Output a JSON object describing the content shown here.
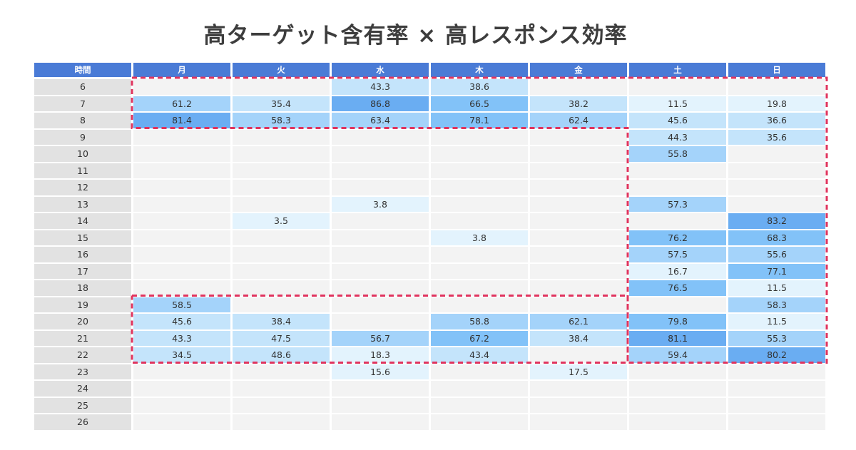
{
  "title": "高ターゲット含有率 × 高レスポンス効率",
  "chart_data": {
    "type": "heatmap",
    "title": "高ターゲット含有率 × 高レスポンス効率",
    "corner_label": "時間",
    "columns": [
      "月",
      "火",
      "水",
      "木",
      "金",
      "土",
      "日"
    ],
    "rows": [
      "6",
      "7",
      "8",
      "9",
      "10",
      "11",
      "12",
      "13",
      "14",
      "15",
      "16",
      "17",
      "18",
      "19",
      "20",
      "21",
      "22",
      "23",
      "24",
      "25",
      "26"
    ],
    "values": [
      [
        null,
        null,
        43.3,
        38.6,
        null,
        null,
        null
      ],
      [
        61.2,
        35.4,
        86.8,
        66.5,
        38.2,
        11.5,
        19.8
      ],
      [
        81.4,
        58.3,
        63.4,
        78.1,
        62.4,
        45.6,
        36.6
      ],
      [
        null,
        null,
        null,
        null,
        null,
        44.3,
        35.6
      ],
      [
        null,
        null,
        null,
        null,
        null,
        55.8,
        null
      ],
      [
        null,
        null,
        null,
        null,
        null,
        null,
        null
      ],
      [
        null,
        null,
        null,
        null,
        null,
        null,
        null
      ],
      [
        null,
        null,
        3.8,
        null,
        null,
        57.3,
        null
      ],
      [
        null,
        3.5,
        null,
        null,
        null,
        null,
        83.2
      ],
      [
        null,
        null,
        null,
        3.8,
        null,
        76.2,
        68.3
      ],
      [
        null,
        null,
        null,
        null,
        null,
        57.5,
        55.6
      ],
      [
        null,
        null,
        null,
        null,
        null,
        16.7,
        77.1
      ],
      [
        null,
        null,
        null,
        null,
        null,
        76.5,
        11.5
      ],
      [
        58.5,
        null,
        null,
        null,
        null,
        null,
        58.3
      ],
      [
        45.6,
        38.4,
        null,
        58.8,
        62.1,
        79.8,
        11.5
      ],
      [
        43.3,
        47.5,
        56.7,
        67.2,
        38.4,
        81.1,
        55.3
      ],
      [
        34.5,
        48.6,
        18.3,
        43.4,
        null,
        59.4,
        80.2
      ],
      [
        null,
        null,
        15.6,
        null,
        17.5,
        null,
        null
      ],
      [
        null,
        null,
        null,
        null,
        null,
        null,
        null
      ],
      [
        null,
        null,
        null,
        null,
        null,
        null,
        null
      ],
      [
        null,
        null,
        null,
        null,
        null,
        null,
        null
      ]
    ]
  },
  "colors": {
    "header": "#4a7bd6",
    "row_header": "#e2e2e2",
    "empty": "#f3f3f3",
    "highlight_border": "#e0345e",
    "scale": [
      "#e3f3fd",
      "#c4e4fb",
      "#a4d3fa",
      "#82c2f8",
      "#6aadf2"
    ]
  }
}
